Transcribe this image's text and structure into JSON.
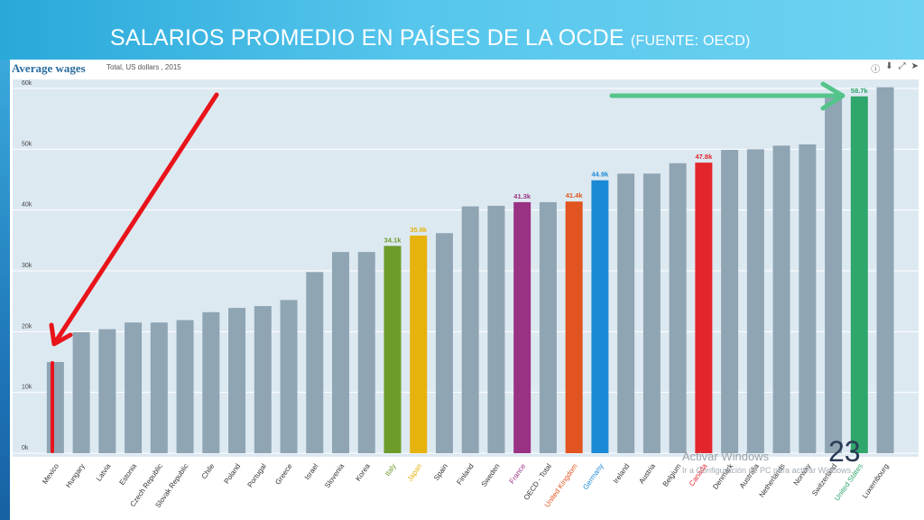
{
  "slide": {
    "title": "SALARIOS PROMEDIO EN PAÍSES DE LA OCDE",
    "source": "(FUENTE: OECD)",
    "page_number": "23"
  },
  "widget": {
    "title": "Average wages",
    "subtitle": "Total, US dollars , 2015",
    "icons": [
      "info-icon",
      "download-icon",
      "expand-icon",
      "share-icon"
    ]
  },
  "watermark": {
    "line1": "Activar Windows",
    "line2": "Ir a Configuración de PC para activar Windows."
  },
  "chart_data": {
    "type": "bar",
    "ylim": [
      0,
      60000
    ],
    "ytick_labels": [
      "0k",
      "10k",
      "20k",
      "30k",
      "40k",
      "50k",
      "60k"
    ],
    "grid": true,
    "categories": [
      "Mexico",
      "Hungary",
      "Latvia",
      "Estonia",
      "Czech Republic",
      "Slovak Republic",
      "Chile",
      "Poland",
      "Portugal",
      "Greece",
      "Israel",
      "Slovenia",
      "Korea",
      "Italy",
      "Japan",
      "Spain",
      "Finland",
      "Sweden",
      "France",
      "OECD - Total",
      "United Kingdom",
      "Germany",
      "Ireland",
      "Austria",
      "Belgium",
      "Canada",
      "Denmark",
      "Australia",
      "Netherlands",
      "Norway",
      "Switzerland",
      "United States",
      "Luxembourg"
    ],
    "values": [
      15000,
      19900,
      20400,
      21500,
      21500,
      21900,
      23200,
      23900,
      24200,
      25200,
      29800,
      33100,
      33100,
      34100,
      35800,
      36200,
      40600,
      40700,
      41300,
      41300,
      41400,
      44900,
      46000,
      46000,
      47700,
      47800,
      49900,
      50000,
      50600,
      50800,
      58500,
      58700,
      60200
    ],
    "colors": [
      "#8fa5b4",
      "#8fa5b4",
      "#8fa5b4",
      "#8fa5b4",
      "#8fa5b4",
      "#8fa5b4",
      "#8fa5b4",
      "#8fa5b4",
      "#8fa5b4",
      "#8fa5b4",
      "#8fa5b4",
      "#8fa5b4",
      "#8fa5b4",
      "#6e9c2b",
      "#e6b30c",
      "#8fa5b4",
      "#8fa5b4",
      "#8fa5b4",
      "#9a3283",
      "#8fa5b4",
      "#e1541f",
      "#1b8ad6",
      "#8fa5b4",
      "#8fa5b4",
      "#8fa5b4",
      "#e3262c",
      "#8fa5b4",
      "#8fa5b4",
      "#8fa5b4",
      "#8fa5b4",
      "#8fa5b4",
      "#2fa66b",
      "#8fa5b4"
    ],
    "label_colors": [
      "#333333",
      "#333333",
      "#333333",
      "#333333",
      "#333333",
      "#333333",
      "#333333",
      "#333333",
      "#333333",
      "#333333",
      "#333333",
      "#333333",
      "#333333",
      "#6e9c2b",
      "#e6b30c",
      "#333333",
      "#333333",
      "#333333",
      "#9a3283",
      "#333333",
      "#e1541f",
      "#1b8ad6",
      "#333333",
      "#333333",
      "#333333",
      "#e3262c",
      "#333333",
      "#333333",
      "#333333",
      "#333333",
      "#333333",
      "#2fa66b",
      "#333333"
    ],
    "data_labels": [
      {
        "index": 13,
        "text": "34.1k"
      },
      {
        "index": 14,
        "text": "35.8k"
      },
      {
        "index": 18,
        "text": "41.3k"
      },
      {
        "index": 20,
        "text": "41.4k"
      },
      {
        "index": 21,
        "text": "44.9k"
      },
      {
        "index": 25,
        "text": "47.8k"
      },
      {
        "index": 31,
        "text": "58.7k"
      }
    ],
    "annotations": [
      {
        "type": "arrow",
        "color": "#e8141a",
        "points_to": "Mexico"
      },
      {
        "type": "arrow",
        "color": "#55c48a",
        "points_to": "United States"
      }
    ]
  }
}
